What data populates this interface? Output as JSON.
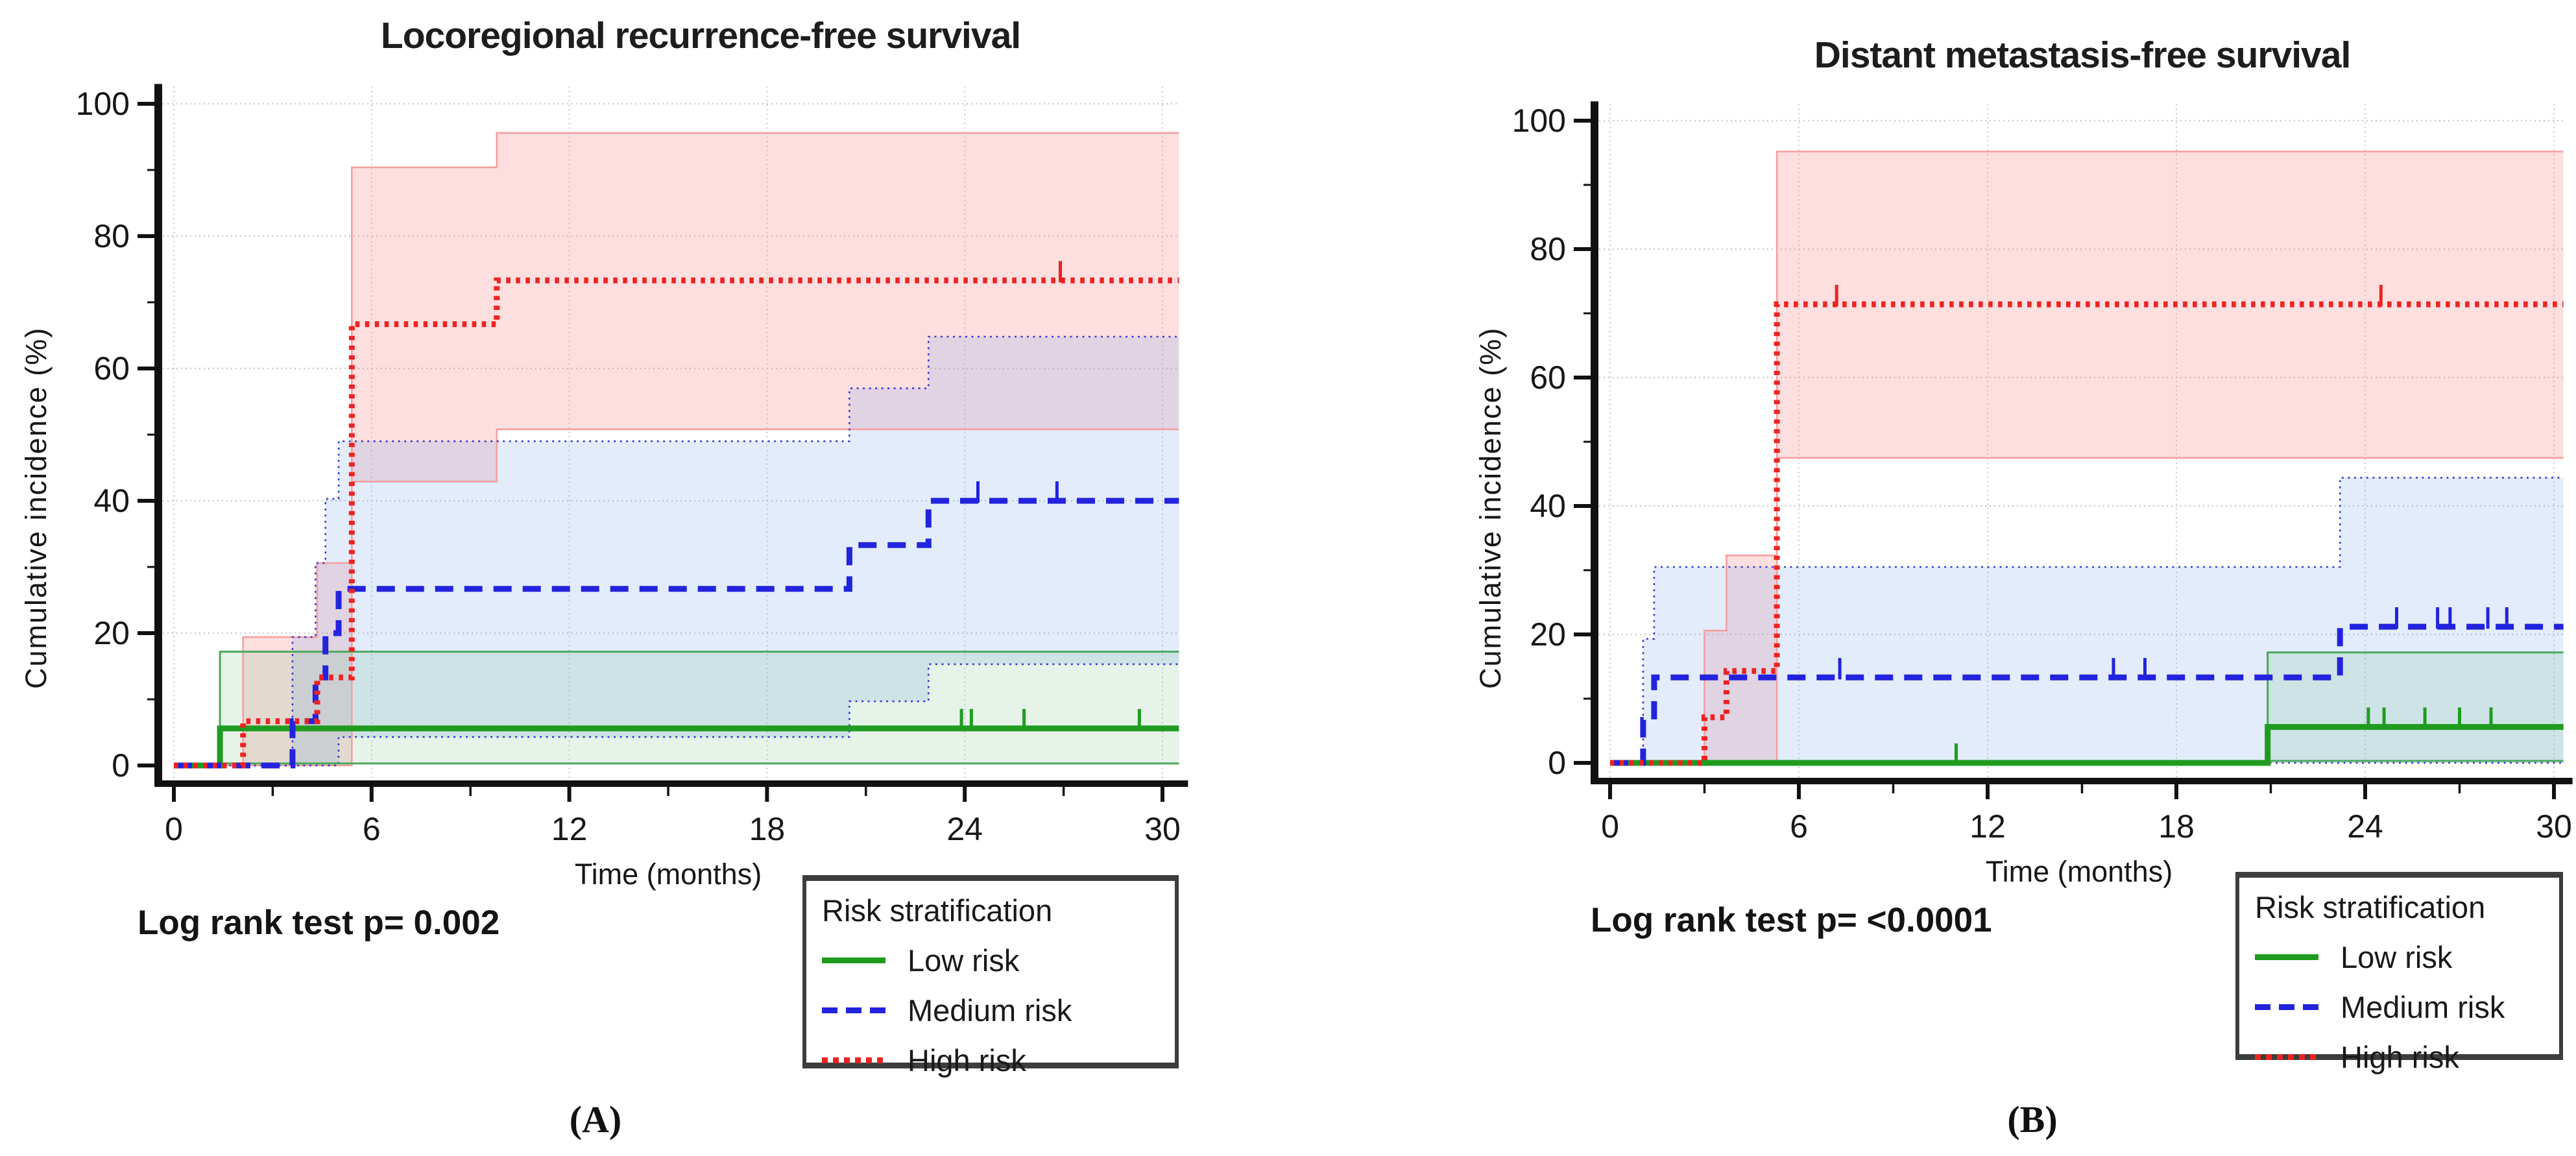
{
  "figure": {
    "description": "Two-panel cumulative incidence (Kaplan-Meier style) step plots with 95% confidence bands by risk stratification group",
    "background_color": "#ffffff"
  },
  "colors": {
    "low_risk": "#1f9c1f",
    "low_band": "rgba(125,195,145,0.20)",
    "low_edge": "#49a85a",
    "medium_risk": "#2323dd",
    "medium_band": "rgba(125,170,235,0.22)",
    "medium_edge": "#3a3ace",
    "high_risk": "#ee2222",
    "high_band": "rgba(250,150,150,0.30)",
    "high_edge": "#f59f9f",
    "axis": "#111111",
    "gridline": "#c9c9c9"
  },
  "chart_data": [
    {
      "type": "line",
      "subtype": "step-cumulative-incidence",
      "panel_label": "(A)",
      "title": "Locoregional recurrence-free survival",
      "xlabel": "Time (months)",
      "ylabel": "Cumulative incidence (%)",
      "p_label": "Log rank test p= 0.002",
      "xlim": [
        0,
        30
      ],
      "ylim": [
        0,
        100
      ],
      "xticks": [
        0,
        6,
        12,
        18,
        24,
        30
      ],
      "xminor": [
        3,
        9,
        15,
        21,
        27
      ],
      "yticks": [
        0,
        20,
        40,
        60,
        80,
        100
      ],
      "yminor": [
        10,
        30,
        50,
        70,
        90
      ],
      "grid": "dotted-major",
      "legend": {
        "title": "Risk stratification",
        "position": "below-right",
        "items": [
          {
            "label": "Low risk",
            "style": "solid"
          },
          {
            "label": "Medium risk",
            "style": "dashed"
          },
          {
            "label": "High risk",
            "style": "dotted"
          }
        ]
      },
      "series": [
        {
          "name": "Low risk",
          "risk": "low",
          "line_style": "solid",
          "color": "#1f9c1f",
          "band_color": "rgba(125,195,145,0.20)",
          "edge_color": "#49a85a",
          "steps": [
            [
              0,
              0
            ],
            [
              1.4,
              5.6
            ]
          ],
          "censor_marks": [
            [
              23.9,
              5.6
            ],
            [
              24.2,
              5.6
            ],
            [
              25.8,
              5.6
            ],
            [
              29.3,
              5.6
            ]
          ],
          "ci_upper": [
            [
              0,
              0
            ],
            [
              1.4,
              17.2
            ]
          ],
          "ci_lower": [
            [
              0,
              0
            ],
            [
              1.4,
              0.3
            ]
          ]
        },
        {
          "name": "Medium risk",
          "risk": "medium",
          "line_style": "dashed",
          "color": "#2323dd",
          "band_color": "rgba(125,170,235,0.22)",
          "edge_color": "#3a3ace",
          "steps": [
            [
              0,
              0
            ],
            [
              3.6,
              6.7
            ],
            [
              4.3,
              13.3
            ],
            [
              4.6,
              20
            ],
            [
              5.0,
              26.7
            ],
            [
              20.5,
              33.3
            ],
            [
              22.9,
              40
            ]
          ],
          "censor_marks": [
            [
              24.4,
              40
            ],
            [
              26.8,
              40
            ]
          ],
          "ci_upper": [
            [
              0,
              0
            ],
            [
              3.6,
              19.4
            ],
            [
              4.3,
              30.6
            ],
            [
              4.6,
              40.3
            ],
            [
              5.0,
              49
            ],
            [
              20.5,
              57
            ],
            [
              22.9,
              64.8
            ]
          ],
          "ci_lower": [
            [
              0,
              0
            ],
            [
              5.0,
              4.3
            ],
            [
              20.5,
              9.7
            ],
            [
              22.9,
              15.3
            ]
          ]
        },
        {
          "name": "High risk",
          "risk": "high",
          "line_style": "dotted",
          "color": "#ee2222",
          "band_color": "rgba(250,150,150,0.30)",
          "edge_color": "#f59f9f",
          "steps": [
            [
              0,
              0
            ],
            [
              2.1,
              6.7
            ],
            [
              4.35,
              13.3
            ],
            [
              5.4,
              66.7
            ],
            [
              9.8,
              73.3
            ]
          ],
          "censor_marks": [
            [
              26.9,
              73.3
            ]
          ],
          "ci_upper": [
            [
              0,
              0
            ],
            [
              2.1,
              19.4
            ],
            [
              4.35,
              30.6
            ],
            [
              5.4,
              90.4
            ],
            [
              9.8,
              95.6
            ]
          ],
          "ci_lower": [
            [
              0,
              0
            ],
            [
              5.4,
              42.9
            ],
            [
              9.8,
              50.8
            ]
          ]
        }
      ]
    },
    {
      "type": "line",
      "subtype": "step-cumulative-incidence",
      "panel_label": "(B)",
      "title": "Distant metastasis-free survival",
      "xlabel": "Time (months)",
      "ylabel": "Cumulative incidence (%)",
      "p_label": "Log rank test p= <0.0001",
      "xlim": [
        0,
        30
      ],
      "ylim": [
        0,
        100
      ],
      "xticks": [
        0,
        6,
        12,
        18,
        24,
        30
      ],
      "xminor": [
        3,
        9,
        15,
        21,
        27
      ],
      "yticks": [
        0,
        20,
        40,
        60,
        80,
        100
      ],
      "yminor": [
        10,
        30,
        50,
        70,
        90
      ],
      "grid": "dotted-major",
      "legend": {
        "title": "Risk stratification",
        "position": "below-right",
        "items": [
          {
            "label": "Low risk",
            "style": "solid"
          },
          {
            "label": "Medium risk",
            "style": "dashed"
          },
          {
            "label": "High risk",
            "style": "dotted"
          }
        ]
      },
      "series": [
        {
          "name": "Low risk",
          "risk": "low",
          "line_style": "solid",
          "color": "#1f9c1f",
          "band_color": "rgba(125,195,145,0.20)",
          "edge_color": "#49a85a",
          "steps": [
            [
              0,
              0
            ],
            [
              20.9,
              5.6
            ]
          ],
          "censor_marks": [
            [
              11.0,
              0
            ],
            [
              24.1,
              5.6
            ],
            [
              24.6,
              5.6
            ],
            [
              25.9,
              5.6
            ],
            [
              27.0,
              5.6
            ],
            [
              28.0,
              5.6
            ]
          ],
          "ci_upper": [
            [
              0,
              0
            ],
            [
              20.9,
              17.2
            ]
          ],
          "ci_lower": [
            [
              0,
              0
            ],
            [
              20.9,
              0.3
            ]
          ]
        },
        {
          "name": "Medium risk",
          "risk": "medium",
          "line_style": "dashed",
          "color": "#2323dd",
          "band_color": "rgba(125,170,235,0.22)",
          "edge_color": "#3a3ace",
          "steps": [
            [
              0,
              0
            ],
            [
              1.05,
              6.7
            ],
            [
              1.4,
              13.3
            ],
            [
              23.2,
              21.2
            ]
          ],
          "censor_marks": [
            [
              7.3,
              13.3
            ],
            [
              16.0,
              13.3
            ],
            [
              17.0,
              13.3
            ],
            [
              25.0,
              21.2
            ],
            [
              26.3,
              21.2
            ],
            [
              26.7,
              21.2
            ],
            [
              27.9,
              21.2
            ],
            [
              28.5,
              21.2
            ]
          ],
          "ci_upper": [
            [
              0,
              0
            ],
            [
              1.05,
              19.3
            ],
            [
              1.4,
              30.5
            ],
            [
              23.2,
              44.4
            ]
          ],
          "ci_lower": [
            [
              0,
              0
            ]
          ]
        },
        {
          "name": "High risk",
          "risk": "high",
          "line_style": "dotted",
          "color": "#ee2222",
          "band_color": "rgba(250,150,150,0.30)",
          "edge_color": "#f59f9f",
          "steps": [
            [
              0,
              0
            ],
            [
              3.0,
              7.1
            ],
            [
              3.7,
              14.3
            ],
            [
              5.3,
              71.4
            ]
          ],
          "censor_marks": [
            [
              7.2,
              71.4
            ],
            [
              24.5,
              71.4
            ]
          ],
          "ci_upper": [
            [
              0,
              0
            ],
            [
              3.0,
              20.6
            ],
            [
              3.7,
              32.3
            ],
            [
              5.3,
              95.2
            ]
          ],
          "ci_lower": [
            [
              0,
              0
            ],
            [
              5.3,
              47.5
            ]
          ]
        }
      ]
    }
  ]
}
